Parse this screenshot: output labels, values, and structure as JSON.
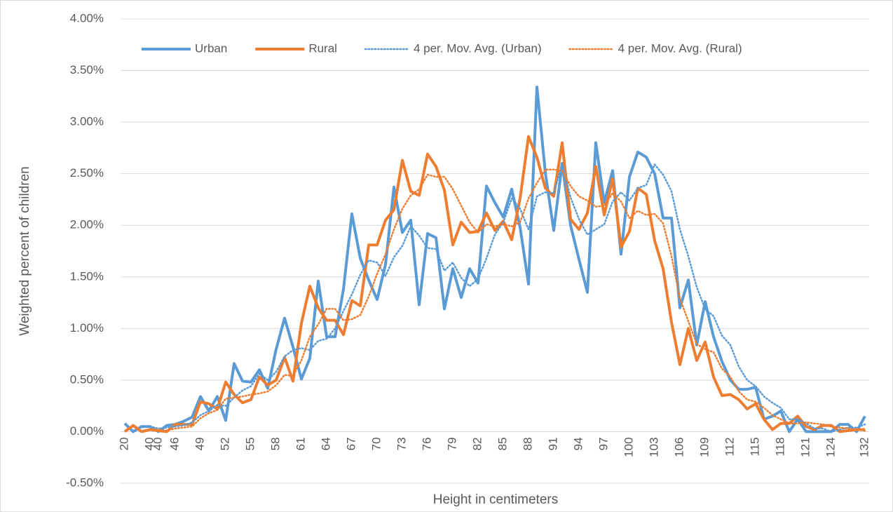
{
  "chart_data": {
    "type": "line",
    "y_label": "Weighted percent of children",
    "x_label": "Height in centimeters",
    "categories": [
      "20",
      null,
      null,
      "40",
      "40",
      null,
      "46",
      null,
      null,
      "49",
      null,
      null,
      "52",
      null,
      null,
      "55",
      null,
      null,
      "58",
      null,
      null,
      "61",
      null,
      null,
      "64",
      null,
      null,
      "67",
      null,
      null,
      "70",
      null,
      null,
      "73",
      null,
      null,
      "76",
      null,
      null,
      "79",
      null,
      null,
      "82",
      null,
      null,
      "85",
      null,
      null,
      "88",
      null,
      null,
      "91",
      null,
      null,
      "94",
      null,
      null,
      "97",
      null,
      null,
      "100",
      null,
      null,
      "103",
      null,
      null,
      "106",
      null,
      null,
      "109",
      null,
      null,
      "112",
      null,
      null,
      "115",
      null,
      null,
      "118",
      null,
      null,
      "121",
      null,
      null,
      "124",
      null,
      null,
      null,
      "132"
    ],
    "ylim": [
      -0.5,
      4.0
    ],
    "yticks": [
      {
        "value": -0.5,
        "label": "-0.50%"
      },
      {
        "value": 0,
        "label": "0.00%"
      },
      {
        "value": 0.5,
        "label": "0.50%"
      },
      {
        "value": 1.0,
        "label": "1.00%"
      },
      {
        "value": 1.5,
        "label": "1.50%"
      },
      {
        "value": 2.0,
        "label": "2.00%"
      },
      {
        "value": 2.5,
        "label": "2.50%"
      },
      {
        "value": 3.0,
        "label": "3.00%"
      },
      {
        "value": 3.5,
        "label": "3.50%"
      },
      {
        "value": 4.0,
        "label": "4.00%"
      }
    ],
    "grid": true,
    "legend": "top",
    "series": [
      {
        "name": "Urban",
        "color": "#5b9bd5",
        "line_style": "solid",
        "values": [
          0.08,
          0.0,
          0.05,
          0.05,
          0.0,
          0.06,
          0.07,
          0.1,
          0.14,
          0.34,
          0.2,
          0.34,
          0.11,
          0.66,
          0.49,
          0.48,
          0.6,
          0.42,
          0.8,
          1.1,
          0.82,
          0.51,
          0.71,
          1.46,
          0.92,
          0.92,
          1.38,
          2.11,
          1.68,
          1.47,
          1.28,
          1.62,
          2.37,
          1.93,
          2.05,
          1.23,
          1.92,
          1.88,
          1.19,
          1.58,
          1.3,
          1.58,
          1.44,
          2.38,
          2.22,
          2.08,
          2.35,
          1.98,
          1.43,
          3.34,
          2.51,
          1.95,
          2.6,
          2.0,
          1.67,
          1.35,
          2.8,
          2.22,
          2.53,
          1.72,
          2.47,
          2.71,
          2.66,
          2.5,
          2.07,
          2.07,
          1.2,
          1.47,
          0.84,
          1.26,
          0.92,
          0.68,
          0.5,
          0.41,
          0.41,
          0.43,
          0.12,
          0.15,
          0.2,
          0.0,
          0.12,
          0.0,
          0.0,
          0.0,
          0.0,
          0.07,
          0.07,
          0.0,
          0.15
        ]
      },
      {
        "name": "Rural",
        "color": "#ed7d31",
        "line_style": "solid",
        "values": [
          0.0,
          0.06,
          0.0,
          0.02,
          0.01,
          0.0,
          0.07,
          0.07,
          0.07,
          0.29,
          0.27,
          0.22,
          0.48,
          0.36,
          0.28,
          0.31,
          0.53,
          0.45,
          0.5,
          0.72,
          0.49,
          1.05,
          1.41,
          1.2,
          1.08,
          1.08,
          0.94,
          1.27,
          1.22,
          1.81,
          1.81,
          2.05,
          2.15,
          2.63,
          2.33,
          2.29,
          2.69,
          2.57,
          2.34,
          1.81,
          2.03,
          1.93,
          1.94,
          2.12,
          1.95,
          2.04,
          1.86,
          2.26,
          2.86,
          2.66,
          2.36,
          2.28,
          2.8,
          2.06,
          1.96,
          2.12,
          2.57,
          2.1,
          2.45,
          1.79,
          1.94,
          2.36,
          2.3,
          1.85,
          1.58,
          1.06,
          0.65,
          1.0,
          0.69,
          0.87,
          0.53,
          0.35,
          0.36,
          0.31,
          0.22,
          0.27,
          0.12,
          0.02,
          0.08,
          0.08,
          0.15,
          0.05,
          0.02,
          0.06,
          0.06,
          0.0,
          0.01,
          0.02,
          0.02
        ]
      },
      {
        "name": "4 per. Mov. Avg. (Urban)",
        "color": "#5b9bd5",
        "line_style": "dotted",
        "values": [
          null,
          null,
          null,
          0.05,
          0.03,
          0.04,
          0.05,
          0.06,
          0.09,
          0.16,
          0.2,
          0.26,
          0.25,
          0.33,
          0.4,
          0.44,
          0.56,
          0.5,
          0.58,
          0.73,
          0.79,
          0.81,
          0.79,
          0.88,
          0.9,
          1.0,
          1.17,
          1.33,
          1.52,
          1.66,
          1.64,
          1.51,
          1.69,
          1.8,
          1.99,
          1.9,
          1.78,
          1.77,
          1.56,
          1.64,
          1.49,
          1.41,
          1.48,
          1.68,
          1.91,
          2.03,
          2.26,
          2.16,
          1.96,
          2.28,
          2.32,
          2.31,
          2.6,
          2.27,
          2.06,
          1.91,
          1.96,
          2.01,
          2.23,
          2.32,
          2.24,
          2.36,
          2.39,
          2.59,
          2.49,
          2.33,
          1.96,
          1.7,
          1.4,
          1.19,
          1.12,
          0.93,
          0.84,
          0.63,
          0.5,
          0.44,
          0.34,
          0.28,
          0.23,
          0.12,
          0.12,
          0.08,
          0.03,
          0.03,
          0.0,
          0.02,
          0.04,
          0.04,
          0.07
        ]
      },
      {
        "name": "4 per. Mov. Avg. (Rural)",
        "color": "#ed7d31",
        "line_style": "dotted",
        "values": [
          null,
          null,
          null,
          0.02,
          0.02,
          0.01,
          0.03,
          0.04,
          0.05,
          0.13,
          0.18,
          0.21,
          0.32,
          0.33,
          0.34,
          0.36,
          0.37,
          0.39,
          0.45,
          0.55,
          0.54,
          0.69,
          0.92,
          1.04,
          1.19,
          1.19,
          1.08,
          1.09,
          1.13,
          1.31,
          1.53,
          1.72,
          1.96,
          2.16,
          2.29,
          2.35,
          2.49,
          2.47,
          2.47,
          2.35,
          2.19,
          2.03,
          1.93,
          2.01,
          1.99,
          2.01,
          1.99,
          2.03,
          2.26,
          2.41,
          2.54,
          2.54,
          2.53,
          2.38,
          2.28,
          2.24,
          2.18,
          2.19,
          2.31,
          2.23,
          2.07,
          2.14,
          2.1,
          2.11,
          2.02,
          1.7,
          1.29,
          1.07,
          0.85,
          0.8,
          0.77,
          0.61,
          0.53,
          0.39,
          0.31,
          0.29,
          0.23,
          0.16,
          0.12,
          0.08,
          0.08,
          0.09,
          0.08,
          0.07,
          0.05,
          0.04,
          0.03,
          0.02,
          0.01
        ]
      }
    ]
  }
}
